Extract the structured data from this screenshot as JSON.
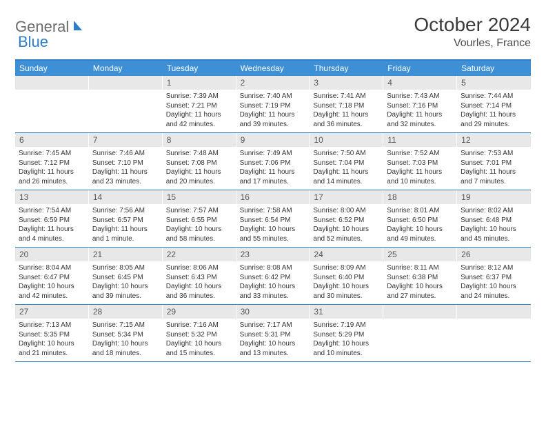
{
  "brand": {
    "part1": "General",
    "part2": "Blue"
  },
  "title": "October 2024",
  "location": "Vourles, France",
  "colors": {
    "header_bg": "#3d8fd6",
    "border": "#2d7dc7",
    "daynum_bg": "#e8e8e8",
    "text": "#333333",
    "logo_gray": "#6b6b6b",
    "logo_blue": "#2d7dc7"
  },
  "dayNames": [
    "Sunday",
    "Monday",
    "Tuesday",
    "Wednesday",
    "Thursday",
    "Friday",
    "Saturday"
  ],
  "weeks": [
    [
      {
        "n": "",
        "lines": []
      },
      {
        "n": "",
        "lines": []
      },
      {
        "n": "1",
        "lines": [
          "Sunrise: 7:39 AM",
          "Sunset: 7:21 PM",
          "Daylight: 11 hours",
          "and 42 minutes."
        ]
      },
      {
        "n": "2",
        "lines": [
          "Sunrise: 7:40 AM",
          "Sunset: 7:19 PM",
          "Daylight: 11 hours",
          "and 39 minutes."
        ]
      },
      {
        "n": "3",
        "lines": [
          "Sunrise: 7:41 AM",
          "Sunset: 7:18 PM",
          "Daylight: 11 hours",
          "and 36 minutes."
        ]
      },
      {
        "n": "4",
        "lines": [
          "Sunrise: 7:43 AM",
          "Sunset: 7:16 PM",
          "Daylight: 11 hours",
          "and 32 minutes."
        ]
      },
      {
        "n": "5",
        "lines": [
          "Sunrise: 7:44 AM",
          "Sunset: 7:14 PM",
          "Daylight: 11 hours",
          "and 29 minutes."
        ]
      }
    ],
    [
      {
        "n": "6",
        "lines": [
          "Sunrise: 7:45 AM",
          "Sunset: 7:12 PM",
          "Daylight: 11 hours",
          "and 26 minutes."
        ]
      },
      {
        "n": "7",
        "lines": [
          "Sunrise: 7:46 AM",
          "Sunset: 7:10 PM",
          "Daylight: 11 hours",
          "and 23 minutes."
        ]
      },
      {
        "n": "8",
        "lines": [
          "Sunrise: 7:48 AM",
          "Sunset: 7:08 PM",
          "Daylight: 11 hours",
          "and 20 minutes."
        ]
      },
      {
        "n": "9",
        "lines": [
          "Sunrise: 7:49 AM",
          "Sunset: 7:06 PM",
          "Daylight: 11 hours",
          "and 17 minutes."
        ]
      },
      {
        "n": "10",
        "lines": [
          "Sunrise: 7:50 AM",
          "Sunset: 7:04 PM",
          "Daylight: 11 hours",
          "and 14 minutes."
        ]
      },
      {
        "n": "11",
        "lines": [
          "Sunrise: 7:52 AM",
          "Sunset: 7:03 PM",
          "Daylight: 11 hours",
          "and 10 minutes."
        ]
      },
      {
        "n": "12",
        "lines": [
          "Sunrise: 7:53 AM",
          "Sunset: 7:01 PM",
          "Daylight: 11 hours",
          "and 7 minutes."
        ]
      }
    ],
    [
      {
        "n": "13",
        "lines": [
          "Sunrise: 7:54 AM",
          "Sunset: 6:59 PM",
          "Daylight: 11 hours",
          "and 4 minutes."
        ]
      },
      {
        "n": "14",
        "lines": [
          "Sunrise: 7:56 AM",
          "Sunset: 6:57 PM",
          "Daylight: 11 hours",
          "and 1 minute."
        ]
      },
      {
        "n": "15",
        "lines": [
          "Sunrise: 7:57 AM",
          "Sunset: 6:55 PM",
          "Daylight: 10 hours",
          "and 58 minutes."
        ]
      },
      {
        "n": "16",
        "lines": [
          "Sunrise: 7:58 AM",
          "Sunset: 6:54 PM",
          "Daylight: 10 hours",
          "and 55 minutes."
        ]
      },
      {
        "n": "17",
        "lines": [
          "Sunrise: 8:00 AM",
          "Sunset: 6:52 PM",
          "Daylight: 10 hours",
          "and 52 minutes."
        ]
      },
      {
        "n": "18",
        "lines": [
          "Sunrise: 8:01 AM",
          "Sunset: 6:50 PM",
          "Daylight: 10 hours",
          "and 49 minutes."
        ]
      },
      {
        "n": "19",
        "lines": [
          "Sunrise: 8:02 AM",
          "Sunset: 6:48 PM",
          "Daylight: 10 hours",
          "and 45 minutes."
        ]
      }
    ],
    [
      {
        "n": "20",
        "lines": [
          "Sunrise: 8:04 AM",
          "Sunset: 6:47 PM",
          "Daylight: 10 hours",
          "and 42 minutes."
        ]
      },
      {
        "n": "21",
        "lines": [
          "Sunrise: 8:05 AM",
          "Sunset: 6:45 PM",
          "Daylight: 10 hours",
          "and 39 minutes."
        ]
      },
      {
        "n": "22",
        "lines": [
          "Sunrise: 8:06 AM",
          "Sunset: 6:43 PM",
          "Daylight: 10 hours",
          "and 36 minutes."
        ]
      },
      {
        "n": "23",
        "lines": [
          "Sunrise: 8:08 AM",
          "Sunset: 6:42 PM",
          "Daylight: 10 hours",
          "and 33 minutes."
        ]
      },
      {
        "n": "24",
        "lines": [
          "Sunrise: 8:09 AM",
          "Sunset: 6:40 PM",
          "Daylight: 10 hours",
          "and 30 minutes."
        ]
      },
      {
        "n": "25",
        "lines": [
          "Sunrise: 8:11 AM",
          "Sunset: 6:38 PM",
          "Daylight: 10 hours",
          "and 27 minutes."
        ]
      },
      {
        "n": "26",
        "lines": [
          "Sunrise: 8:12 AM",
          "Sunset: 6:37 PM",
          "Daylight: 10 hours",
          "and 24 minutes."
        ]
      }
    ],
    [
      {
        "n": "27",
        "lines": [
          "Sunrise: 7:13 AM",
          "Sunset: 5:35 PM",
          "Daylight: 10 hours",
          "and 21 minutes."
        ]
      },
      {
        "n": "28",
        "lines": [
          "Sunrise: 7:15 AM",
          "Sunset: 5:34 PM",
          "Daylight: 10 hours",
          "and 18 minutes."
        ]
      },
      {
        "n": "29",
        "lines": [
          "Sunrise: 7:16 AM",
          "Sunset: 5:32 PM",
          "Daylight: 10 hours",
          "and 15 minutes."
        ]
      },
      {
        "n": "30",
        "lines": [
          "Sunrise: 7:17 AM",
          "Sunset: 5:31 PM",
          "Daylight: 10 hours",
          "and 13 minutes."
        ]
      },
      {
        "n": "31",
        "lines": [
          "Sunrise: 7:19 AM",
          "Sunset: 5:29 PM",
          "Daylight: 10 hours",
          "and 10 minutes."
        ]
      },
      {
        "n": "",
        "lines": []
      },
      {
        "n": "",
        "lines": []
      }
    ]
  ]
}
